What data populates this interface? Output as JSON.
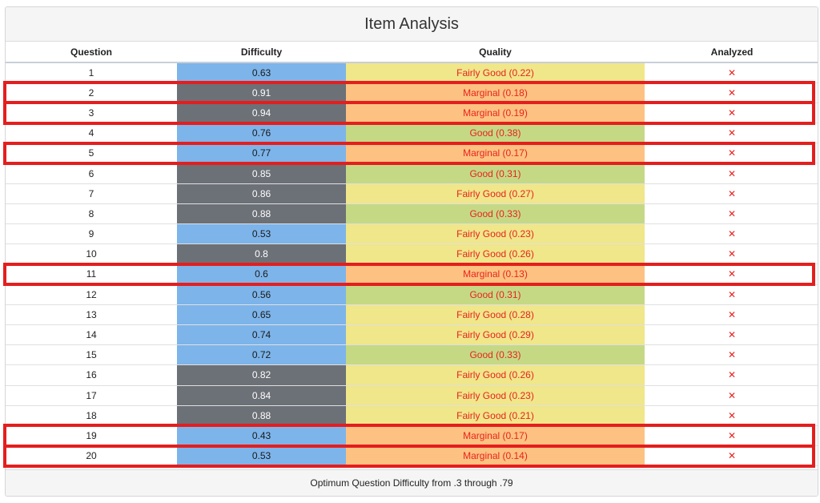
{
  "title": "Item Analysis",
  "columns": {
    "question": "Question",
    "difficulty": "Difficulty",
    "quality": "Quality",
    "analyzed": "Analyzed"
  },
  "rows": [
    {
      "question": "1",
      "difficulty": "0.63",
      "difficulty_band": "optimum",
      "quality": "Fairly Good (0.22)",
      "quality_level": "fairly-good",
      "analyzed": "✕"
    },
    {
      "question": "2",
      "difficulty": "0.91",
      "difficulty_band": "outside",
      "quality": "Marginal (0.18)",
      "quality_level": "marginal",
      "analyzed": "✕"
    },
    {
      "question": "3",
      "difficulty": "0.94",
      "difficulty_band": "outside",
      "quality": "Marginal (0.19)",
      "quality_level": "marginal",
      "analyzed": "✕"
    },
    {
      "question": "4",
      "difficulty": "0.76",
      "difficulty_band": "optimum",
      "quality": "Good (0.38)",
      "quality_level": "good",
      "analyzed": "✕"
    },
    {
      "question": "5",
      "difficulty": "0.77",
      "difficulty_band": "optimum",
      "quality": "Marginal (0.17)",
      "quality_level": "marginal",
      "analyzed": "✕"
    },
    {
      "question": "6",
      "difficulty": "0.85",
      "difficulty_band": "outside",
      "quality": "Good (0.31)",
      "quality_level": "good",
      "analyzed": "✕"
    },
    {
      "question": "7",
      "difficulty": "0.86",
      "difficulty_band": "outside",
      "quality": "Fairly Good (0.27)",
      "quality_level": "fairly-good",
      "analyzed": "✕"
    },
    {
      "question": "8",
      "difficulty": "0.88",
      "difficulty_band": "outside",
      "quality": "Good (0.33)",
      "quality_level": "good",
      "analyzed": "✕"
    },
    {
      "question": "9",
      "difficulty": "0.53",
      "difficulty_band": "optimum",
      "quality": "Fairly Good (0.23)",
      "quality_level": "fairly-good",
      "analyzed": "✕"
    },
    {
      "question": "10",
      "difficulty": "0.8",
      "difficulty_band": "outside",
      "quality": "Fairly Good (0.26)",
      "quality_level": "fairly-good",
      "analyzed": "✕"
    },
    {
      "question": "11",
      "difficulty": "0.6",
      "difficulty_band": "optimum",
      "quality": "Marginal (0.13)",
      "quality_level": "marginal",
      "analyzed": "✕"
    },
    {
      "question": "12",
      "difficulty": "0.56",
      "difficulty_band": "optimum",
      "quality": "Good (0.31)",
      "quality_level": "good",
      "analyzed": "✕"
    },
    {
      "question": "13",
      "difficulty": "0.65",
      "difficulty_band": "optimum",
      "quality": "Fairly Good (0.28)",
      "quality_level": "fairly-good",
      "analyzed": "✕"
    },
    {
      "question": "14",
      "difficulty": "0.74",
      "difficulty_band": "optimum",
      "quality": "Fairly Good (0.29)",
      "quality_level": "fairly-good",
      "analyzed": "✕"
    },
    {
      "question": "15",
      "difficulty": "0.72",
      "difficulty_band": "optimum",
      "quality": "Good (0.33)",
      "quality_level": "good",
      "analyzed": "✕"
    },
    {
      "question": "16",
      "difficulty": "0.82",
      "difficulty_band": "outside",
      "quality": "Fairly Good (0.26)",
      "quality_level": "fairly-good",
      "analyzed": "✕"
    },
    {
      "question": "17",
      "difficulty": "0.84",
      "difficulty_band": "outside",
      "quality": "Fairly Good (0.23)",
      "quality_level": "fairly-good",
      "analyzed": "✕"
    },
    {
      "question": "18",
      "difficulty": "0.88",
      "difficulty_band": "outside",
      "quality": "Fairly Good (0.21)",
      "quality_level": "fairly-good",
      "analyzed": "✕"
    },
    {
      "question": "19",
      "difficulty": "0.43",
      "difficulty_band": "optimum",
      "quality": "Marginal (0.17)",
      "quality_level": "marginal",
      "analyzed": "✕"
    },
    {
      "question": "20",
      "difficulty": "0.53",
      "difficulty_band": "optimum",
      "quality": "Marginal (0.14)",
      "quality_level": "marginal",
      "analyzed": "✕"
    }
  ],
  "footer": "Optimum Question Difficulty from .3 through .79",
  "colors": {
    "difficulty_optimum": "#7db4ea",
    "difficulty_outside": "#6c7077",
    "quality_fairly_good": "#f0e68a",
    "quality_good": "#c5d985",
    "quality_marginal": "#fdc281",
    "quality_text": "#e8231f",
    "analyzed_mark": "#e8231f",
    "highlight_outline": "#e41e1e"
  },
  "analyzed_icon": "close-x-icon",
  "highlighted_rows": [
    "2",
    "3",
    "5",
    "11",
    "19",
    "20"
  ]
}
